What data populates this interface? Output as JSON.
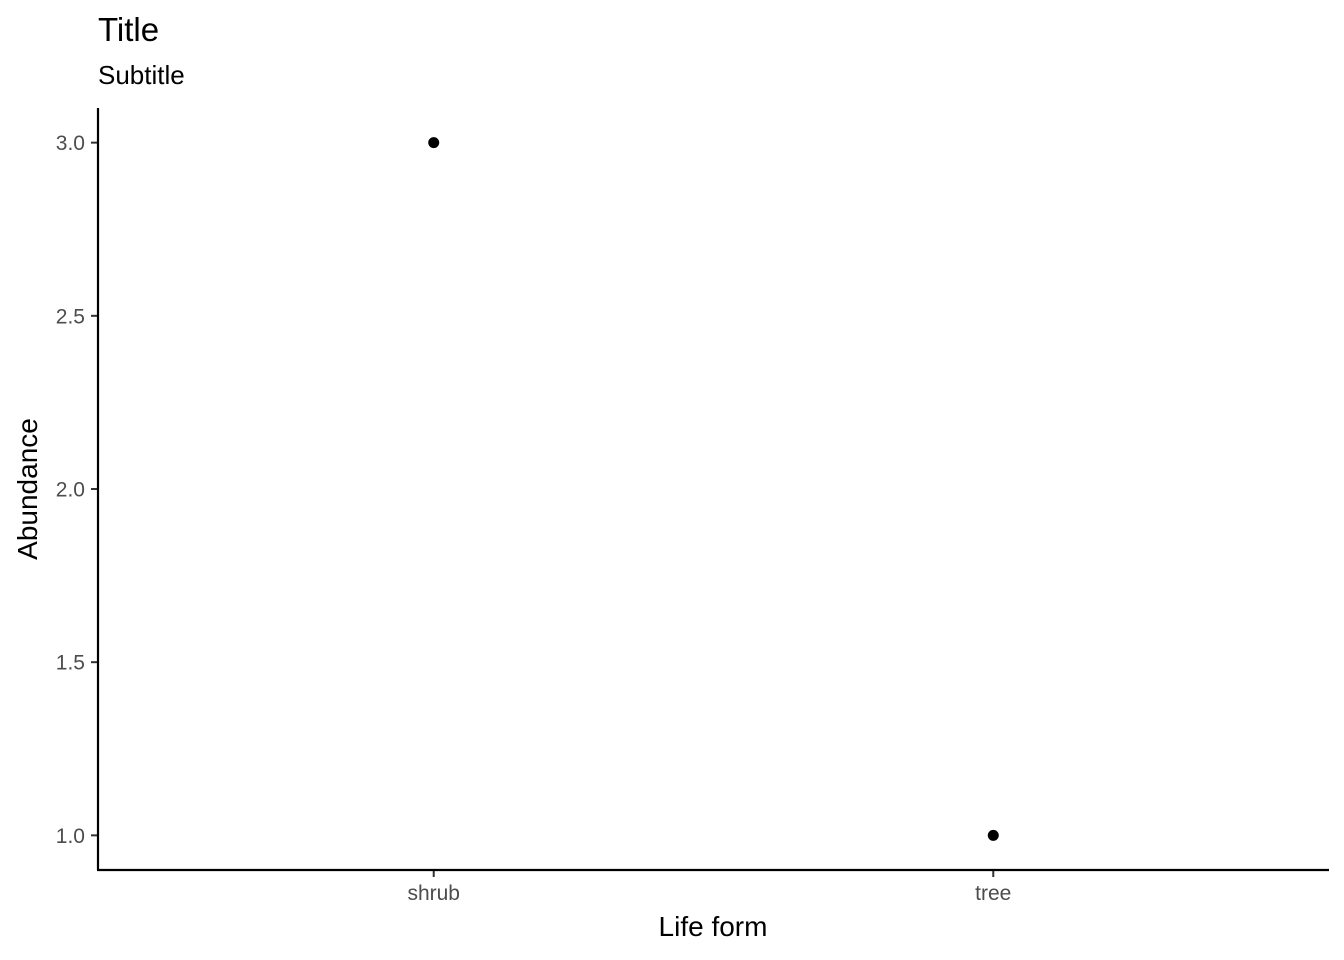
{
  "chart_data": {
    "type": "scatter",
    "title": "Title",
    "subtitle": "Subtitle",
    "xlabel": "Life form",
    "ylabel": "Abundance",
    "categories": [
      "shrub",
      "tree"
    ],
    "values": [
      3.0,
      1.0
    ],
    "ylim": [
      0.9,
      3.1
    ],
    "yticks": [
      "1.0",
      "1.5",
      "2.0",
      "2.5",
      "3.0"
    ],
    "grid": false,
    "legend": "none",
    "point_color": "#000000",
    "axis_color": "#000000",
    "tick_label_color": "#4d4d4d"
  }
}
